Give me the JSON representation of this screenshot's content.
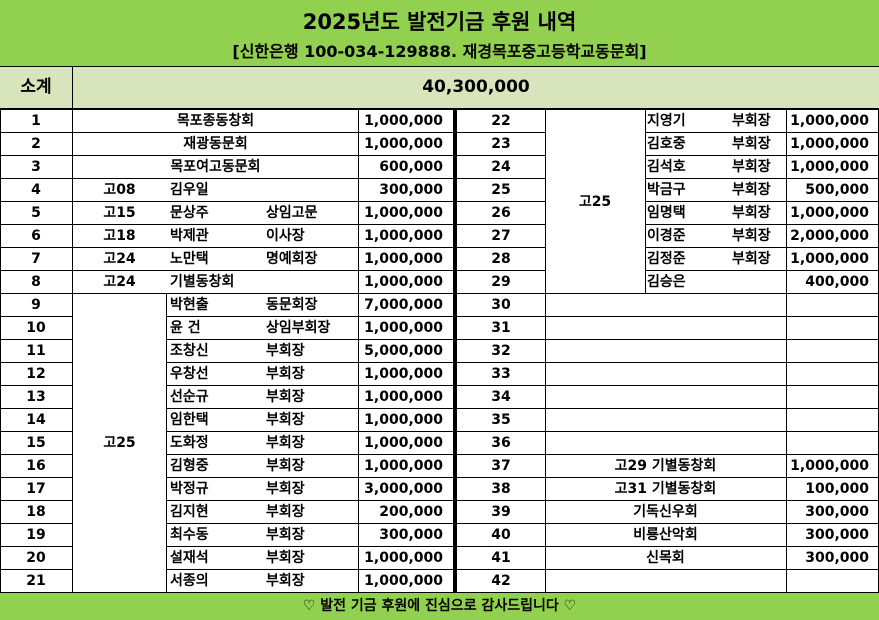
{
  "header": {
    "title": "2025년도 발전기금  후원 내역",
    "account": "[신한은행 100-034-129888. 재경목포중고등학교동문회]"
  },
  "summary": {
    "label": "소계",
    "total": "40,300,000"
  },
  "left_rows": [
    {
      "no": "1",
      "group": "",
      "name": "목포종동창회",
      "role": "",
      "amount": "1,000,000"
    },
    {
      "no": "2",
      "group": "",
      "name": "재광동문회",
      "role": "",
      "amount": "1,000,000"
    },
    {
      "no": "3",
      "group": "",
      "name": "목포여고동문회",
      "role": "",
      "amount": "600,000"
    },
    {
      "no": "4",
      "group": "고08",
      "name": "김우일",
      "role": "",
      "amount": "300,000"
    },
    {
      "no": "5",
      "group": "고15",
      "name": "문상주",
      "role": "상임고문",
      "amount": "1,000,000"
    },
    {
      "no": "6",
      "group": "고18",
      "name": "박제관",
      "role": "이사장",
      "amount": "1,000,000"
    },
    {
      "no": "7",
      "group": "고24",
      "name": "노만택",
      "role": "명예회장",
      "amount": "1,000,000"
    },
    {
      "no": "8",
      "group": "고24",
      "name": "기별동창회",
      "role": "",
      "amount": "1,000,000"
    },
    {
      "no": "9",
      "group": "",
      "name": "박현출",
      "role": "동문회장",
      "amount": "7,000,000"
    },
    {
      "no": "10",
      "group": "",
      "name": "윤  건",
      "role": "상임부회장",
      "amount": "1,000,000"
    },
    {
      "no": "11",
      "group": "",
      "name": "조창신",
      "role": "부회장",
      "amount": "5,000,000"
    },
    {
      "no": "12",
      "group": "",
      "name": "우창선",
      "role": "부회장",
      "amount": "1,000,000"
    },
    {
      "no": "13",
      "group": "",
      "name": "선순규",
      "role": "부회장",
      "amount": "1,000,000"
    },
    {
      "no": "14",
      "group": "",
      "name": "임한택",
      "role": "부회장",
      "amount": "1,000,000"
    },
    {
      "no": "15",
      "group": "",
      "name": "도화정",
      "role": "부회장",
      "amount": "1,000,000"
    },
    {
      "no": "16",
      "group": "",
      "name": "김형중",
      "role": "부회장",
      "amount": "1,000,000"
    },
    {
      "no": "17",
      "group": "",
      "name": "박정규",
      "role": "부회장",
      "amount": "3,000,000"
    },
    {
      "no": "18",
      "group": "",
      "name": "김지현",
      "role": "부회장",
      "amount": "200,000"
    },
    {
      "no": "19",
      "group": "",
      "name": "최수동",
      "role": "부회장",
      "amount": "300,000"
    },
    {
      "no": "20",
      "group": "",
      "name": "설재석",
      "role": "부회장",
      "amount": "1,000,000"
    },
    {
      "no": "21",
      "group": "",
      "name": "서종의",
      "role": "부회장",
      "amount": "1,000,000"
    }
  ],
  "left_merged_group": "고25",
  "right_rows": [
    {
      "no": "22",
      "name": "지영기",
      "role": "부회장",
      "amount": "1,000,000"
    },
    {
      "no": "23",
      "name": "김호중",
      "role": "부회장",
      "amount": "1,000,000"
    },
    {
      "no": "24",
      "name": "김석호",
      "role": "부회장",
      "amount": "1,000,000"
    },
    {
      "no": "25",
      "name": "박금구",
      "role": "부회장",
      "amount": "500,000"
    },
    {
      "no": "26",
      "name": "임명택",
      "role": "부회장",
      "amount": "1,000,000"
    },
    {
      "no": "27",
      "name": "이경준",
      "role": "부회장",
      "amount": "2,000,000"
    },
    {
      "no": "28",
      "name": "김정준",
      "role": "부회장",
      "amount": "1,000,000"
    },
    {
      "no": "29",
      "name": "김승은",
      "role": "",
      "amount": "400,000"
    },
    {
      "no": "30",
      "name": "",
      "role": "",
      "amount": ""
    },
    {
      "no": "31",
      "name": "",
      "role": "",
      "amount": ""
    },
    {
      "no": "32",
      "name": "",
      "role": "",
      "amount": ""
    },
    {
      "no": "33",
      "name": "",
      "role": "",
      "amount": ""
    },
    {
      "no": "34",
      "name": "",
      "role": "",
      "amount": ""
    },
    {
      "no": "35",
      "name": "",
      "role": "",
      "amount": ""
    },
    {
      "no": "36",
      "name": "",
      "role": "",
      "amount": ""
    },
    {
      "no": "37",
      "name": "고29 기별동창회",
      "role": "",
      "amount": "1,000,000"
    },
    {
      "no": "38",
      "name": "고31 기별동창회",
      "role": "",
      "amount": "100,000"
    },
    {
      "no": "39",
      "name": "기독신우회",
      "role": "",
      "amount": "300,000"
    },
    {
      "no": "40",
      "name": "비룡산악회",
      "role": "",
      "amount": "300,000"
    },
    {
      "no": "41",
      "name": "신목회",
      "role": "",
      "amount": "300,000"
    },
    {
      "no": "42",
      "name": "",
      "role": "",
      "amount": ""
    }
  ],
  "right_merged_group": "고25",
  "footer": "♡ 발전 기금 후원에 진심으로 감사드립니다 ♡"
}
